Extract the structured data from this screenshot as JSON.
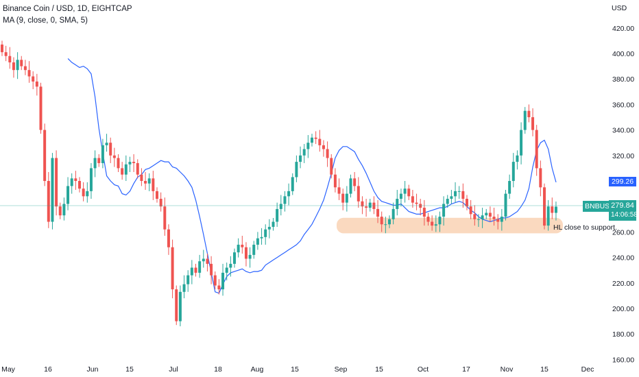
{
  "legend": {
    "title": "Binance Coin / USD, 1D, EIGHTCAP",
    "indicator": "MA (9, close, 0, SMA, 5)"
  },
  "price_axis": {
    "unit": "USD",
    "ticks": [
      "420.00",
      "400.00",
      "380.00",
      "360.00",
      "340.00",
      "320.00",
      "300.00",
      "280.00",
      "260.00",
      "240.00",
      "220.00",
      "200.00",
      "180.00",
      "160.00"
    ]
  },
  "time_axis": {
    "ticks": [
      "May",
      "16",
      "Jun",
      "15",
      "Jul",
      "18",
      "Aug",
      "15",
      "Sep",
      "15",
      "Oct",
      "17",
      "Nov",
      "15",
      "Dec"
    ]
  },
  "ma_tag": {
    "value": "299.26",
    "color": "#2962ff"
  },
  "symbol_tag": {
    "symbol": "BNBUSD",
    "price": "279.84",
    "countdown": "14:06:58",
    "color": "#26a69a"
  },
  "annotation": {
    "text": "HL close to support."
  },
  "colors": {
    "up": "#26a69a",
    "down": "#ef5350",
    "ma": "#2962ff",
    "support_zone": "#f9d2b4",
    "price_line": "#26a69a"
  },
  "chart_data": {
    "type": "candlestick",
    "title": "Binance Coin / USD, 1D, EIGHTCAP",
    "ylabel": "USD",
    "ylim": [
      160,
      430
    ],
    "x_ticks": [
      "May",
      "16",
      "Jun",
      "15",
      "Jul",
      "18",
      "Aug",
      "15",
      "Sep",
      "15",
      "Oct",
      "17",
      "Nov",
      "15",
      "Dec"
    ],
    "y_ticks": [
      420,
      400,
      380,
      360,
      340,
      320,
      300,
      280,
      260,
      240,
      220,
      200,
      180,
      160
    ],
    "last_price": 279.84,
    "ma_last": 299.26,
    "support_zone": [
      260,
      270
    ],
    "annotation": "HL close to support.",
    "series": [
      {
        "name": "BNBUSD",
        "kind": "ohlc",
        "close": [
          401,
          398,
          393,
          387,
          395,
          390,
          387,
          382,
          378,
          374,
          340,
          300,
          268,
          318,
          280,
          273,
          282,
          296,
          302,
          300,
          294,
          288,
          292,
          310,
          318,
          314,
          328,
          330,
          320,
          318,
          310,
          305,
          313,
          315,
          314,
          305,
          300,
          298,
          302,
          292,
          286,
          280,
          262,
          248,
          215,
          190,
          213,
          219,
          226,
          232,
          228,
          237,
          239,
          235,
          226,
          218,
          215,
          228,
          232,
          235,
          244,
          250,
          248,
          239,
          242,
          250,
          255,
          256,
          262,
          264,
          268,
          278,
          282,
          288,
          292,
          303,
          315,
          320,
          325,
          330,
          334,
          333,
          328,
          325,
          318,
          305,
          295,
          290,
          283,
          290,
          302,
          296,
          284,
          280,
          279,
          283,
          278,
          272,
          266,
          266,
          270,
          278,
          286,
          290,
          294,
          288,
          283,
          282,
          279,
          272,
          268,
          265,
          266,
          272,
          282,
          286,
          288,
          292,
          292,
          286,
          280,
          274,
          270,
          270,
          273,
          275,
          272,
          270,
          268,
          272,
          290,
          300,
          315,
          320,
          340,
          355,
          350,
          340,
          310,
          295,
          265,
          280,
          275,
          279.84
        ]
      },
      {
        "name": "MA (9, close, 0, SMA, 5)",
        "kind": "line",
        "values": [
          396,
          393,
          391,
          389,
          390,
          388,
          384,
          366,
          341,
          322,
          304,
          300,
          297,
          296,
          290,
          289,
          292,
          298,
          303,
          305,
          309,
          310,
          312,
          314,
          316,
          315,
          315,
          311,
          310,
          307,
          304,
          300,
          295,
          285,
          272,
          258,
          243,
          228,
          213,
          212,
          219,
          225,
          228,
          229,
          230,
          231,
          229,
          228,
          229,
          229,
          230,
          234,
          236,
          238,
          240,
          242,
          244,
          246,
          248,
          250,
          253,
          258,
          262,
          266,
          272,
          278,
          285,
          295,
          306,
          318,
          324,
          327,
          327,
          325,
          323,
          317,
          312,
          306,
          299,
          292,
          287,
          284,
          283,
          282,
          281,
          281,
          282,
          279,
          276,
          275,
          274,
          274,
          275,
          276,
          277,
          278,
          279,
          279,
          280,
          282,
          283,
          284,
          283,
          280,
          277,
          275,
          272,
          270,
          269,
          268,
          269,
          270,
          271,
          271,
          272,
          274,
          276,
          280,
          285,
          294,
          311,
          324,
          330,
          332,
          325,
          310,
          299
        ]
      }
    ]
  }
}
